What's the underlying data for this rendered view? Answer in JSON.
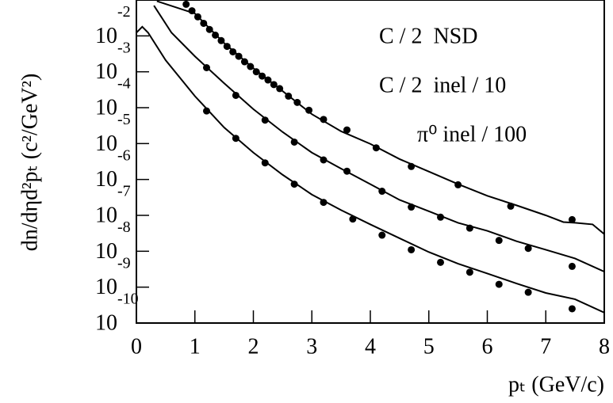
{
  "chart_data": {
    "type": "scatter-line",
    "x_label": "pₜ (GeV/c)",
    "y_label": "dn/dηd²pₜ (c²/GeV²)",
    "xlim": [
      0,
      8
    ],
    "xticks": [
      0,
      1,
      2,
      3,
      4,
      5,
      6,
      7,
      8
    ],
    "ylim": [
      1e-10,
      0.1
    ],
    "log_y": true,
    "yticks": [
      {
        "value": 1e-10,
        "label": "10",
        "exponent": "-10"
      },
      {
        "value": 1e-09,
        "label": "10",
        "exponent": "-9"
      },
      {
        "value": 1e-08,
        "label": "10",
        "exponent": "-8"
      },
      {
        "value": 1e-07,
        "label": "10",
        "exponent": "-7"
      },
      {
        "value": 1e-06,
        "label": "10",
        "exponent": "-6"
      },
      {
        "value": 1e-05,
        "label": "10",
        "exponent": "-5"
      },
      {
        "value": 0.0001,
        "label": "10",
        "exponent": "-4"
      },
      {
        "value": 0.001,
        "label": "10",
        "exponent": "-3"
      },
      {
        "value": 0.01,
        "label": "10",
        "exponent": "-2"
      }
    ],
    "series": [
      {
        "name": "C / 2  NSD",
        "color": "#000000",
        "x": [
          0.85,
          0.95,
          1.05,
          1.15,
          1.25,
          1.35,
          1.45,
          1.55,
          1.65,
          1.75,
          1.85,
          1.95,
          2.05,
          2.15,
          2.25,
          2.35,
          2.45,
          2.6,
          2.75,
          2.95,
          3.2,
          3.6,
          4.1,
          4.7,
          5.5,
          6.4,
          7.45
        ],
        "values": [
          0.0759,
          0.0501,
          0.0339,
          0.0224,
          0.0151,
          0.0105,
          0.0074,
          0.0051,
          0.0036,
          0.0027,
          0.0019,
          0.0014,
          0.001,
          0.00076,
          0.00059,
          0.00044,
          0.00034,
          0.00021,
          0.00014,
          8.5e-05,
          4.7e-05,
          2.4e-05,
          7.6e-06,
          2.3e-06,
          7.1e-07,
          1.8e-07,
          7.6e-08
        ],
        "curve_x": [
          0.35,
          1,
          1.5,
          2,
          2.5,
          3,
          3.5,
          4,
          4.5,
          5,
          5.5,
          6,
          6.5,
          7,
          7.3,
          7.5,
          7.8,
          8
        ],
        "curve_values": [
          0.093,
          0.042,
          0.0063,
          0.00126,
          0.00029,
          6.6e-05,
          2.2e-05,
          9.8e-06,
          3.7e-06,
          1.66e-06,
          7.4e-07,
          3.5e-07,
          1.9e-07,
          1e-07,
          6.5e-08,
          6.2e-08,
          5.6e-08,
          3e-08
        ]
      },
      {
        "name": "C / 2  inel / 10",
        "color": "#000000",
        "x": [
          1.2,
          1.7,
          2.2,
          2.7,
          3.2,
          3.6,
          4.2,
          4.7,
          5.2,
          5.7,
          6.2,
          6.7,
          7.45
        ],
        "values": [
          0.0013,
          0.00022,
          4.5e-05,
          1.1e-05,
          3.5e-06,
          1.7e-06,
          4.7e-07,
          1.7e-07,
          8.9e-08,
          4.4e-08,
          2e-08,
          1.2e-08,
          3.8e-09
        ],
        "curve_x": [
          0.3,
          0.6,
          1,
          1.5,
          2,
          2.5,
          3,
          3.5,
          4,
          4.5,
          5,
          5.5,
          6,
          6.5,
          7,
          7.5,
          8
        ],
        "curve_values": [
          0.07,
          0.0123,
          0.0027,
          0.00048,
          9.1e-05,
          2.1e-05,
          5.6e-06,
          2e-06,
          7.4e-07,
          2.7e-07,
          1.3e-07,
          6.2e-08,
          3.7e-08,
          1.9e-08,
          1.1e-08,
          6.3e-09,
          2.7e-09
        ]
      },
      {
        "name": "π⁰ inel / 100",
        "color": "#000000",
        "x": [
          1.2,
          1.7,
          2.2,
          2.7,
          3.2,
          3.7,
          4.2,
          4.7,
          5.2,
          5.7,
          6.2,
          6.7,
          7.45
        ],
        "values": [
          8.1e-05,
          1.4e-05,
          2.9e-06,
          7.4e-07,
          2.3e-07,
          7.9e-08,
          2.8e-08,
          1.1e-08,
          4.9e-09,
          2.6e-09,
          1.2e-09,
          7.2e-10,
          2.5e-10
        ],
        "curve_x": [
          0,
          0.1,
          0.2,
          0.5,
          1,
          1.5,
          2,
          2.5,
          3,
          3.5,
          4,
          4.5,
          5,
          5.5,
          6,
          6.5,
          7,
          7.5,
          8
        ],
        "curve_values": [
          0.0123,
          0.018,
          0.0123,
          0.0021,
          0.00021,
          2.8e-05,
          5.6e-06,
          1.35e-06,
          3.8e-07,
          1.4e-07,
          5.6e-08,
          2.3e-08,
          9.5e-09,
          4.5e-09,
          2.4e-09,
          1.26e-09,
          6.9e-10,
          4.6e-10,
          1.95e-10
        ]
      }
    ]
  }
}
